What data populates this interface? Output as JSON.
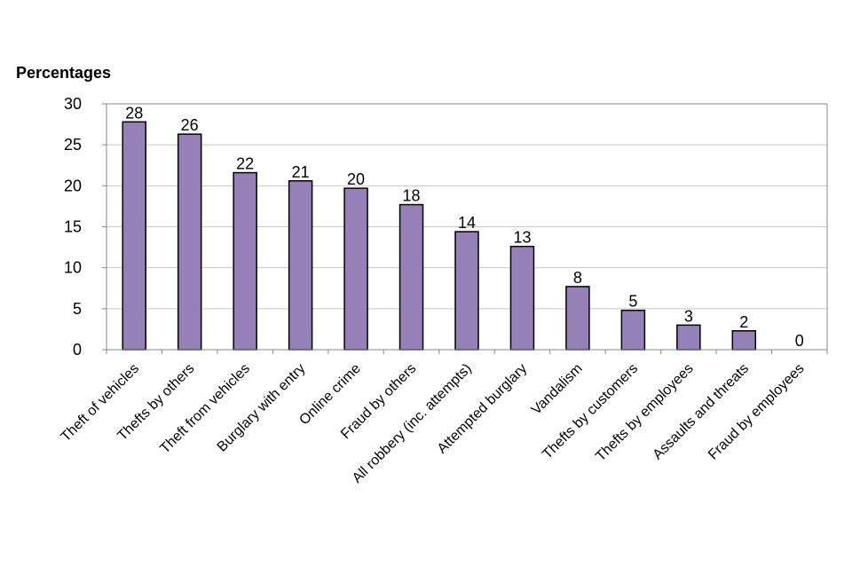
{
  "chart_data": {
    "type": "bar",
    "ylabel": "Percentages",
    "ylim": [
      0,
      30
    ],
    "yticks": [
      0,
      5,
      10,
      15,
      20,
      25,
      30
    ],
    "grid": true,
    "bar_color": "#9580b8",
    "categories": [
      "Theft of vehicles",
      "Thefts by others",
      "Theft from vehicles",
      "Burglary with entry",
      "Online crime",
      "Fraud by others",
      "All robbery (inc. attempts)",
      "Attempted burglary",
      "Vandalism",
      "Thefts by customers",
      "Thefts by employees",
      "Assaults and threats",
      "Fraud by employees"
    ],
    "values": [
      27.8,
      26.3,
      21.6,
      20.6,
      19.7,
      17.7,
      14.4,
      12.6,
      7.7,
      4.8,
      3.0,
      2.3,
      0.0
    ],
    "data_labels": [
      "28",
      "26",
      "22",
      "21",
      "20",
      "18",
      "14",
      "13",
      "8",
      "5",
      "3",
      "2",
      "0"
    ]
  }
}
